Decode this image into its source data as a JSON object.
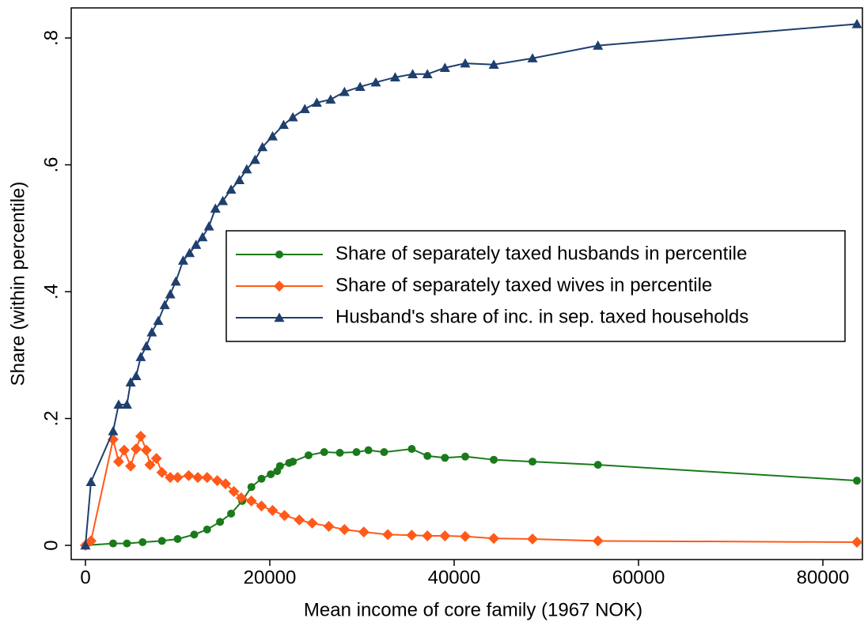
{
  "chart_data": {
    "type": "line",
    "x_label": "Mean income of core family (1967 NOK)",
    "y_label": "Share (within percentile)",
    "xlim": [
      -1545,
      84292
    ],
    "ylim": [
      -0.0224,
      0.8474
    ],
    "xticks": [
      0,
      20000,
      40000,
      60000,
      80000
    ],
    "yticks": [
      0,
      {
        "value": 0.2,
        "label": ".2"
      },
      {
        "value": 0.4,
        "label": ".4"
      },
      {
        "value": 0.6,
        "label": ".6"
      },
      {
        "value": 0.8,
        "label": ".8"
      }
    ],
    "grid": false,
    "legend": "right",
    "series": [
      {
        "name": "Share of separately taxed husbands in percentile",
        "color": "#1a7a1a",
        "marker": "circle",
        "x": [
          0,
          3000,
          4500,
          6200,
          8300,
          10000,
          11800,
          13200,
          14600,
          15800,
          17000,
          18000,
          19100,
          20100,
          20800,
          21100,
          22100,
          22500,
          24200,
          25900,
          27600,
          29400,
          30700,
          32400,
          35400,
          37100,
          39000,
          41200,
          44300,
          48500,
          55600,
          83700
        ],
        "values": [
          0,
          0.003,
          0.003,
          0.005,
          0.007,
          0.01,
          0.017,
          0.025,
          0.037,
          0.05,
          0.07,
          0.092,
          0.105,
          0.112,
          0.117,
          0.125,
          0.13,
          0.132,
          0.142,
          0.147,
          0.146,
          0.147,
          0.15,
          0.147,
          0.152,
          0.141,
          0.138,
          0.14,
          0.135,
          0.132,
          0.127,
          0.102
        ]
      },
      {
        "name": "Share of separately taxed wives in percentile",
        "color": "#ff5a1a",
        "marker": "diamond",
        "x": [
          0,
          600,
          3000,
          3600,
          4200,
          4900,
          5500,
          6000,
          6600,
          7000,
          7700,
          8300,
          9200,
          10000,
          11200,
          12200,
          13200,
          14300,
          15200,
          16100,
          16900,
          18000,
          19100,
          20300,
          21600,
          23200,
          24600,
          26400,
          28100,
          30200,
          32800,
          35400,
          37100,
          39000,
          41200,
          44300,
          48500,
          55600,
          83700
        ],
        "values": [
          0,
          0.007,
          0.167,
          0.132,
          0.15,
          0.125,
          0.152,
          0.172,
          0.15,
          0.127,
          0.137,
          0.115,
          0.107,
          0.107,
          0.11,
          0.107,
          0.107,
          0.102,
          0.097,
          0.085,
          0.075,
          0.07,
          0.062,
          0.055,
          0.047,
          0.04,
          0.035,
          0.03,
          0.025,
          0.021,
          0.017,
          0.016,
          0.015,
          0.015,
          0.014,
          0.011,
          0.01,
          0.007,
          0.005
        ]
      },
      {
        "name": "Husband's share of inc. in sep. taxed households",
        "color": "#1f3f6e",
        "marker": "triangle",
        "x": [
          0,
          600,
          3000,
          3600,
          4500,
          4900,
          5500,
          6000,
          6600,
          7200,
          7900,
          8600,
          9200,
          9800,
          10600,
          11300,
          12000,
          12700,
          13400,
          14100,
          14900,
          15800,
          16700,
          17500,
          18400,
          19200,
          20300,
          21500,
          22500,
          23800,
          25100,
          26600,
          28100,
          29800,
          31500,
          33600,
          35500,
          37100,
          39000,
          41200,
          44300,
          48500,
          55600,
          83700
        ],
        "values": [
          0,
          0.1,
          0.18,
          0.222,
          0.222,
          0.257,
          0.267,
          0.297,
          0.314,
          0.336,
          0.354,
          0.379,
          0.396,
          0.416,
          0.449,
          0.461,
          0.474,
          0.486,
          0.503,
          0.531,
          0.543,
          0.561,
          0.576,
          0.593,
          0.608,
          0.628,
          0.645,
          0.663,
          0.675,
          0.688,
          0.698,
          0.703,
          0.715,
          0.723,
          0.73,
          0.738,
          0.743,
          0.743,
          0.753,
          0.76,
          0.758,
          0.768,
          0.788,
          0.822
        ]
      }
    ]
  }
}
